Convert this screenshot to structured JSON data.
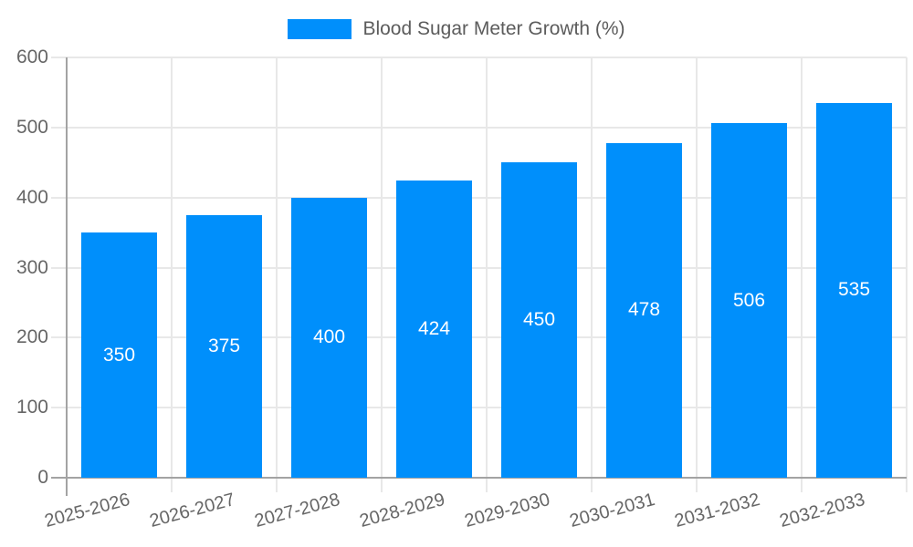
{
  "chart_data": {
    "type": "bar",
    "title": "Blood Sugar Meter Growth (%)",
    "legend": {
      "label": "Blood Sugar Meter Growth (%)",
      "position": "top"
    },
    "categories": [
      "2025-2026",
      "2026-2027",
      "2027-2028",
      "2028-2029",
      "2029-2030",
      "2030-2031",
      "2031-2032",
      "2032-2033"
    ],
    "series": [
      {
        "name": "Blood Sugar Meter Growth (%)",
        "values": [
          350,
          375,
          400,
          424,
          450,
          478,
          506,
          535
        ]
      }
    ],
    "xlabel": "",
    "ylabel": "",
    "ylim": [
      0,
      600
    ],
    "yticks": [
      0,
      100,
      200,
      300,
      400,
      500,
      600
    ],
    "grid": "on",
    "x_label_rotation_deg": -15,
    "value_labels": "inside-middle",
    "colors": {
      "bar": "#008FFB",
      "grid": "#e8e8e8",
      "axis": "#a3a3a3",
      "tick_label": "#666666",
      "legend_text": "#5c5c5c",
      "value_label": "#ffffff",
      "background": "#ffffff"
    }
  }
}
